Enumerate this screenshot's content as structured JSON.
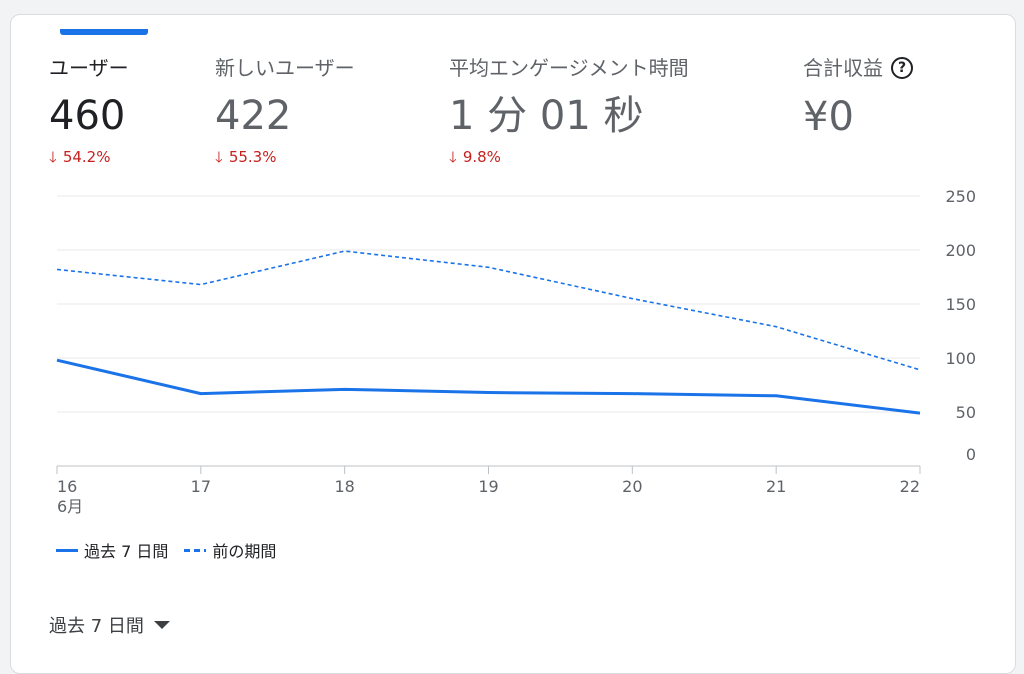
{
  "metrics": [
    {
      "label": "ユーザー",
      "value": "460",
      "change": "54.2%"
    },
    {
      "label": "新しいユーザー",
      "value": "422",
      "change": "55.3%"
    },
    {
      "label": "平均エンゲージメント時間",
      "value": "1 分 01 秒",
      "change": "9.8%"
    },
    {
      "label": "合計収益",
      "value": "¥0"
    }
  ],
  "legend": {
    "current": "過去 7 日間",
    "previous": "前の期間"
  },
  "period_selector": {
    "label": "過去 7 日間"
  },
  "colors": {
    "accent": "#1a73e8",
    "negative": "#c5221f"
  },
  "chart_data": {
    "type": "line",
    "categories": [
      "16",
      "17",
      "18",
      "19",
      "20",
      "21",
      "22"
    ],
    "month_label": "6月",
    "series": [
      {
        "name": "過去 7 日間",
        "style": "solid",
        "values": [
          98,
          67,
          71,
          68,
          67,
          65,
          49
        ]
      },
      {
        "name": "前の期間",
        "style": "dashed",
        "values": [
          182,
          168,
          199,
          184,
          155,
          129,
          89
        ]
      }
    ],
    "y_ticks": [
      0,
      50,
      100,
      150,
      200,
      250
    ],
    "ylim": [
      0,
      250
    ],
    "grid": true,
    "y_axis_position": "right"
  }
}
